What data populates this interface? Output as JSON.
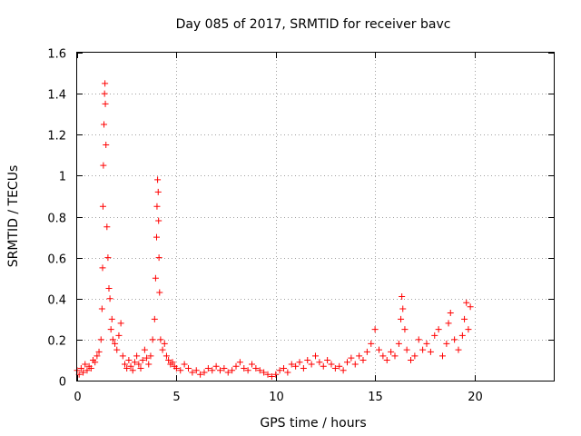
{
  "chart_data": {
    "type": "scatter",
    "title": "Day 085 of 2017, SRMTID for receiver bavc",
    "xlabel": "GPS time / hours",
    "ylabel": "SRMTID / TECUs",
    "xlim": [
      0,
      24
    ],
    "ylim": [
      0,
      1.6
    ],
    "xticks": [
      0,
      5,
      10,
      15,
      20
    ],
    "yticks": [
      0,
      0.2,
      0.4,
      0.6,
      0.8,
      1,
      1.2,
      1.4,
      1.6
    ],
    "ytick_labels": [
      "0",
      "0.2",
      "0.4",
      "0.6",
      "0.8",
      "1",
      "1.2",
      "1.4",
      "1.6"
    ],
    "grid": true,
    "marker": "+",
    "color": "#ff0000",
    "series": [
      {
        "name": "SRMTID",
        "x": [
          0.0,
          0.1,
          0.2,
          0.3,
          0.4,
          0.5,
          0.6,
          0.7,
          0.8,
          0.9,
          1.0,
          1.1,
          1.2,
          1.25,
          1.28,
          1.3,
          1.32,
          1.35,
          1.38,
          1.4,
          1.42,
          1.45,
          1.5,
          1.55,
          1.6,
          1.65,
          1.7,
          1.75,
          1.8,
          1.9,
          2.0,
          2.1,
          2.2,
          2.3,
          2.4,
          2.5,
          2.6,
          2.7,
          2.8,
          2.9,
          3.0,
          3.1,
          3.2,
          3.3,
          3.4,
          3.5,
          3.6,
          3.7,
          3.8,
          3.9,
          3.95,
          4.0,
          4.02,
          4.05,
          4.08,
          4.1,
          4.12,
          4.15,
          4.2,
          4.3,
          4.4,
          4.5,
          4.6,
          4.7,
          4.8,
          4.9,
          5.0,
          5.2,
          5.4,
          5.6,
          5.8,
          6.0,
          6.2,
          6.4,
          6.6,
          6.8,
          7.0,
          7.2,
          7.4,
          7.6,
          7.8,
          8.0,
          8.2,
          8.4,
          8.6,
          8.8,
          9.0,
          9.2,
          9.4,
          9.6,
          9.8,
          10.0,
          10.2,
          10.4,
          10.6,
          10.8,
          11.0,
          11.2,
          11.4,
          11.6,
          11.8,
          12.0,
          12.2,
          12.4,
          12.6,
          12.8,
          13.0,
          13.2,
          13.4,
          13.6,
          13.8,
          14.0,
          14.2,
          14.4,
          14.6,
          14.8,
          15.0,
          15.2,
          15.4,
          15.6,
          15.8,
          16.0,
          16.2,
          16.3,
          16.35,
          16.4,
          16.5,
          16.6,
          16.8,
          17.0,
          17.2,
          17.4,
          17.6,
          17.8,
          18.0,
          18.2,
          18.4,
          18.6,
          18.7,
          18.8,
          19.0,
          19.2,
          19.4,
          19.5,
          19.6,
          19.7,
          19.8
        ],
        "y": [
          0.05,
          0.03,
          0.06,
          0.04,
          0.08,
          0.05,
          0.07,
          0.06,
          0.1,
          0.09,
          0.12,
          0.14,
          0.2,
          0.35,
          0.55,
          0.85,
          1.05,
          1.25,
          1.4,
          1.45,
          1.35,
          1.15,
          0.75,
          0.6,
          0.45,
          0.4,
          0.25,
          0.3,
          0.2,
          0.18,
          0.15,
          0.22,
          0.28,
          0.12,
          0.08,
          0.06,
          0.1,
          0.07,
          0.05,
          0.09,
          0.12,
          0.08,
          0.06,
          0.1,
          0.15,
          0.11,
          0.08,
          0.12,
          0.2,
          0.3,
          0.5,
          0.7,
          0.85,
          0.98,
          0.92,
          0.78,
          0.6,
          0.43,
          0.2,
          0.15,
          0.18,
          0.12,
          0.1,
          0.08,
          0.09,
          0.07,
          0.06,
          0.05,
          0.08,
          0.06,
          0.04,
          0.05,
          0.03,
          0.04,
          0.06,
          0.05,
          0.07,
          0.05,
          0.06,
          0.04,
          0.05,
          0.07,
          0.09,
          0.06,
          0.05,
          0.08,
          0.06,
          0.05,
          0.04,
          0.03,
          0.02,
          0.03,
          0.05,
          0.06,
          0.04,
          0.08,
          0.07,
          0.09,
          0.06,
          0.1,
          0.08,
          0.12,
          0.09,
          0.07,
          0.1,
          0.08,
          0.06,
          0.07,
          0.05,
          0.09,
          0.11,
          0.08,
          0.12,
          0.1,
          0.14,
          0.18,
          0.25,
          0.15,
          0.12,
          0.1,
          0.14,
          0.12,
          0.18,
          0.3,
          0.41,
          0.35,
          0.25,
          0.15,
          0.1,
          0.12,
          0.2,
          0.15,
          0.18,
          0.14,
          0.22,
          0.25,
          0.12,
          0.18,
          0.28,
          0.33,
          0.2,
          0.15,
          0.22,
          0.3,
          0.38,
          0.25,
          0.36
        ]
      }
    ]
  }
}
